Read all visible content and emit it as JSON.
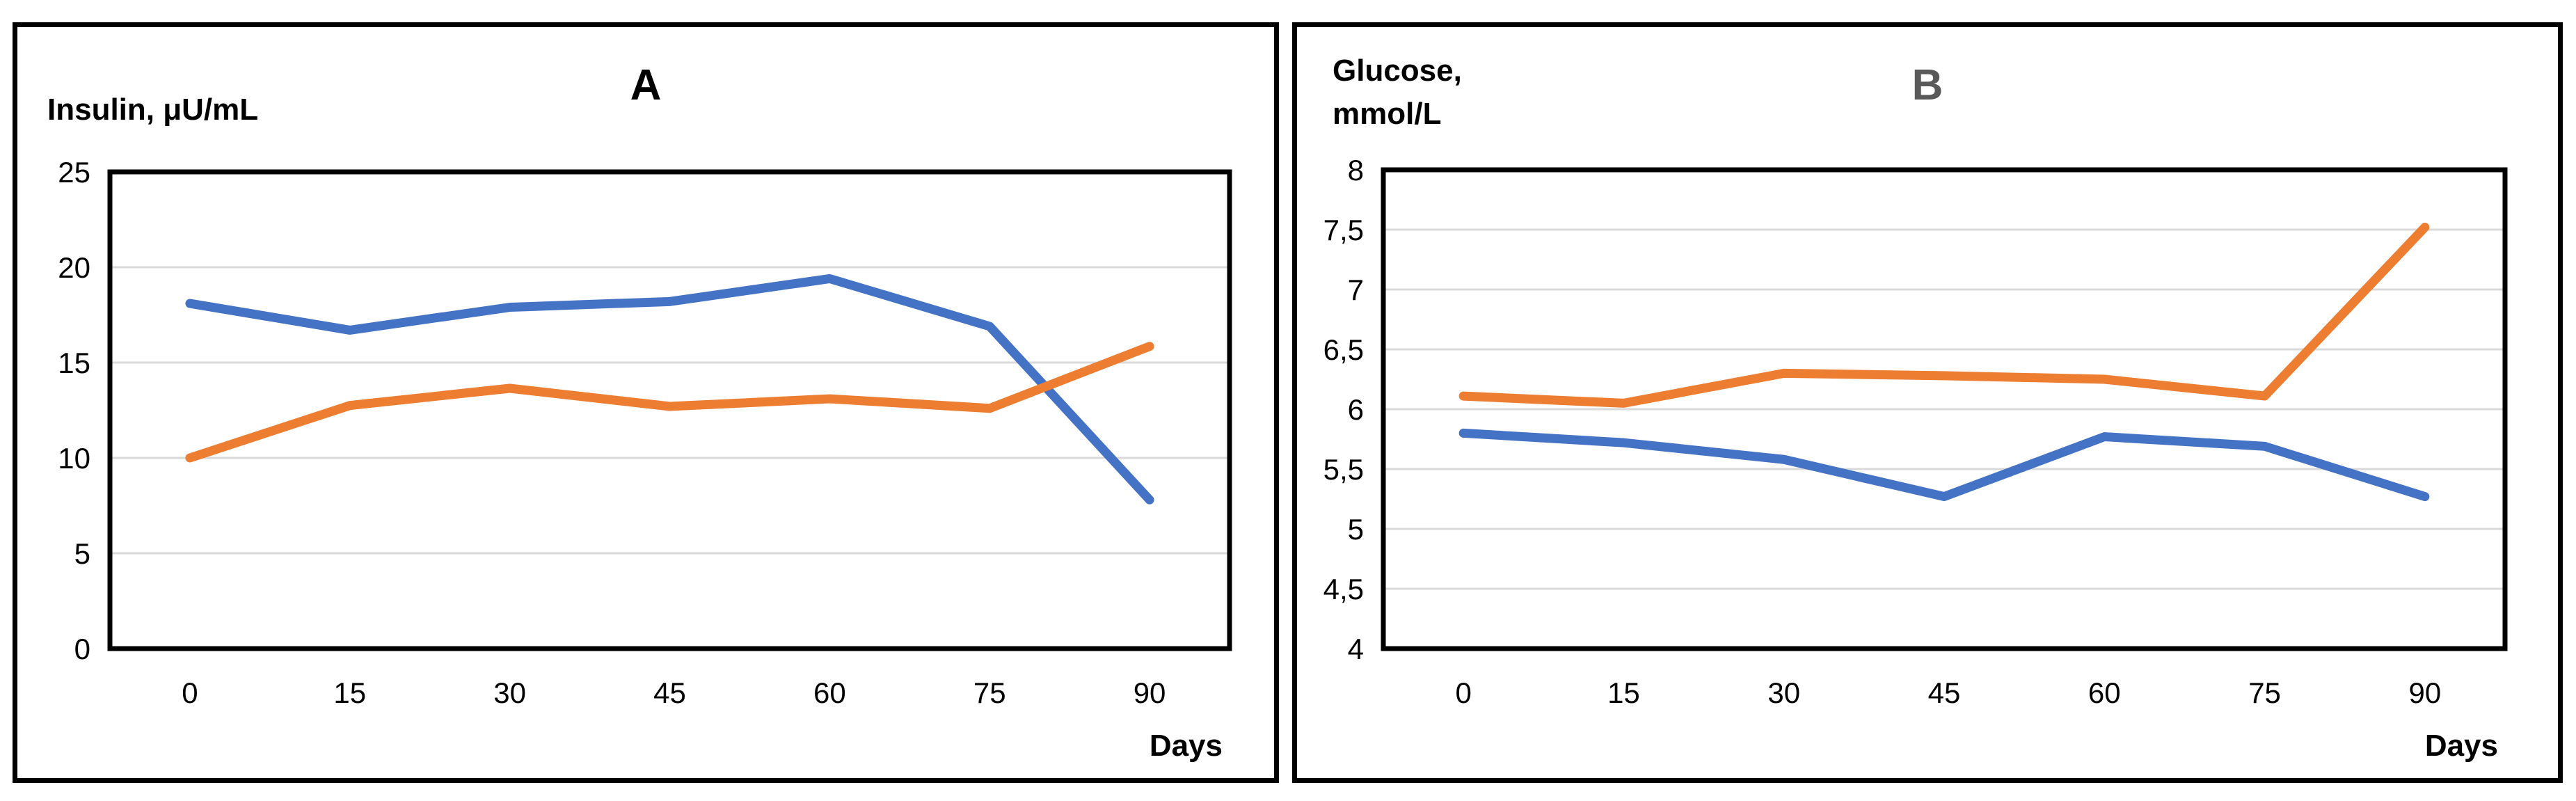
{
  "styles": {
    "series_blue": "#4472C4",
    "series_orange": "#ED7D31",
    "gridline": "#D9D9D9",
    "axis_box": "#000000",
    "panel_border": "#000000",
    "title_a_color": "#000000",
    "title_b_color": "#595959",
    "tick_text_color": "#000000"
  },
  "chart_data": [
    {
      "type": "line",
      "title": "A",
      "y_axis_label_lines": [
        "Insulin, μU/mL"
      ],
      "x_axis_label": "Days",
      "categories": [
        "0",
        "15",
        "30",
        "45",
        "60",
        "75",
        "90"
      ],
      "ylim": [
        0,
        25
      ],
      "ytick_labels_top_to_bottom": [
        "25",
        "20",
        "15",
        "10",
        "5",
        "0"
      ],
      "grid": true,
      "legend": "none",
      "series": [
        {
          "name": "blue-line",
          "color": "#4472C4",
          "values": [
            18.1,
            16.7,
            17.9,
            18.2,
            19.4,
            16.9,
            7.8
          ]
        },
        {
          "name": "orange-line",
          "color": "#ED7D31",
          "values": [
            10.0,
            12.75,
            13.65,
            12.7,
            13.1,
            12.6,
            15.85
          ]
        }
      ]
    },
    {
      "type": "line",
      "title": "B",
      "y_axis_label_lines": [
        "Glucose,",
        "mmol/L"
      ],
      "x_axis_label": "Days",
      "categories": [
        "0",
        "15",
        "30",
        "45",
        "60",
        "75",
        "90"
      ],
      "ylim": [
        4,
        8
      ],
      "ytick_labels_top_to_bottom": [
        "8",
        "7,5",
        "7",
        "6,5",
        "6",
        "5,5",
        "5",
        "4,5",
        "4"
      ],
      "grid": true,
      "legend": "none",
      "series": [
        {
          "name": "blue-line",
          "color": "#4472C4",
          "values": [
            5.8,
            5.72,
            5.58,
            5.27,
            5.77,
            5.69,
            5.27
          ]
        },
        {
          "name": "orange-line",
          "color": "#ED7D31",
          "values": [
            6.11,
            6.05,
            6.3,
            6.28,
            6.25,
            6.11,
            7.52
          ]
        }
      ]
    }
  ]
}
